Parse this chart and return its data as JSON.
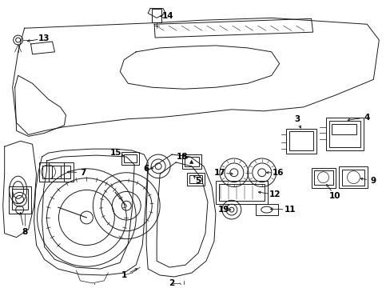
{
  "background_color": "#ffffff",
  "line_color": "#1a1a1a",
  "text_color": "#000000",
  "fig_width": 4.89,
  "fig_height": 3.6,
  "dpi": 100,
  "lw": 0.7
}
